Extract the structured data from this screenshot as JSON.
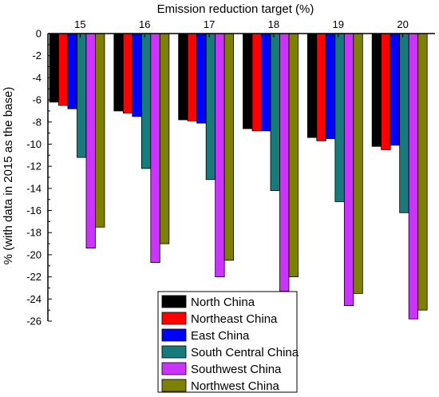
{
  "chart_data": {
    "type": "bar",
    "xlabel": "Emission reduction target (%)",
    "ylabel": "% (with data in 2015 as the base)",
    "categories": [
      "15",
      "16",
      "17",
      "18",
      "19",
      "20"
    ],
    "ylim": [
      -26,
      0
    ],
    "yticks": [
      0,
      -2,
      -4,
      -6,
      -8,
      -10,
      -12,
      -14,
      -16,
      -18,
      -20,
      -22,
      -24,
      -26
    ],
    "x_axis_position": "top",
    "legend_position": "bottom-center",
    "grid": false,
    "series": [
      {
        "name": "North China",
        "color": "#000000",
        "values": [
          -6.2,
          -7.0,
          -7.8,
          -8.6,
          -9.4,
          -10.2
        ]
      },
      {
        "name": "Northeast China",
        "color": "#ff0000",
        "values": [
          -6.5,
          -7.2,
          -7.9,
          -8.8,
          -9.7,
          -10.5
        ]
      },
      {
        "name": "East China",
        "color": "#0000ff",
        "values": [
          -6.8,
          -7.5,
          -8.1,
          -8.8,
          -9.5,
          -10.1
        ]
      },
      {
        "name": "South Central China",
        "color": "#177b7b",
        "values": [
          -11.2,
          -12.2,
          -13.2,
          -14.2,
          -15.2,
          -16.2
        ]
      },
      {
        "name": "Southwest China",
        "color": "#cc33ff",
        "values": [
          -19.4,
          -20.7,
          -22.0,
          -23.3,
          -24.6,
          -25.8
        ]
      },
      {
        "name": "Northwest China",
        "color": "#808000",
        "values": [
          -17.5,
          -19.0,
          -20.5,
          -22.0,
          -23.5,
          -25.0
        ]
      }
    ]
  }
}
